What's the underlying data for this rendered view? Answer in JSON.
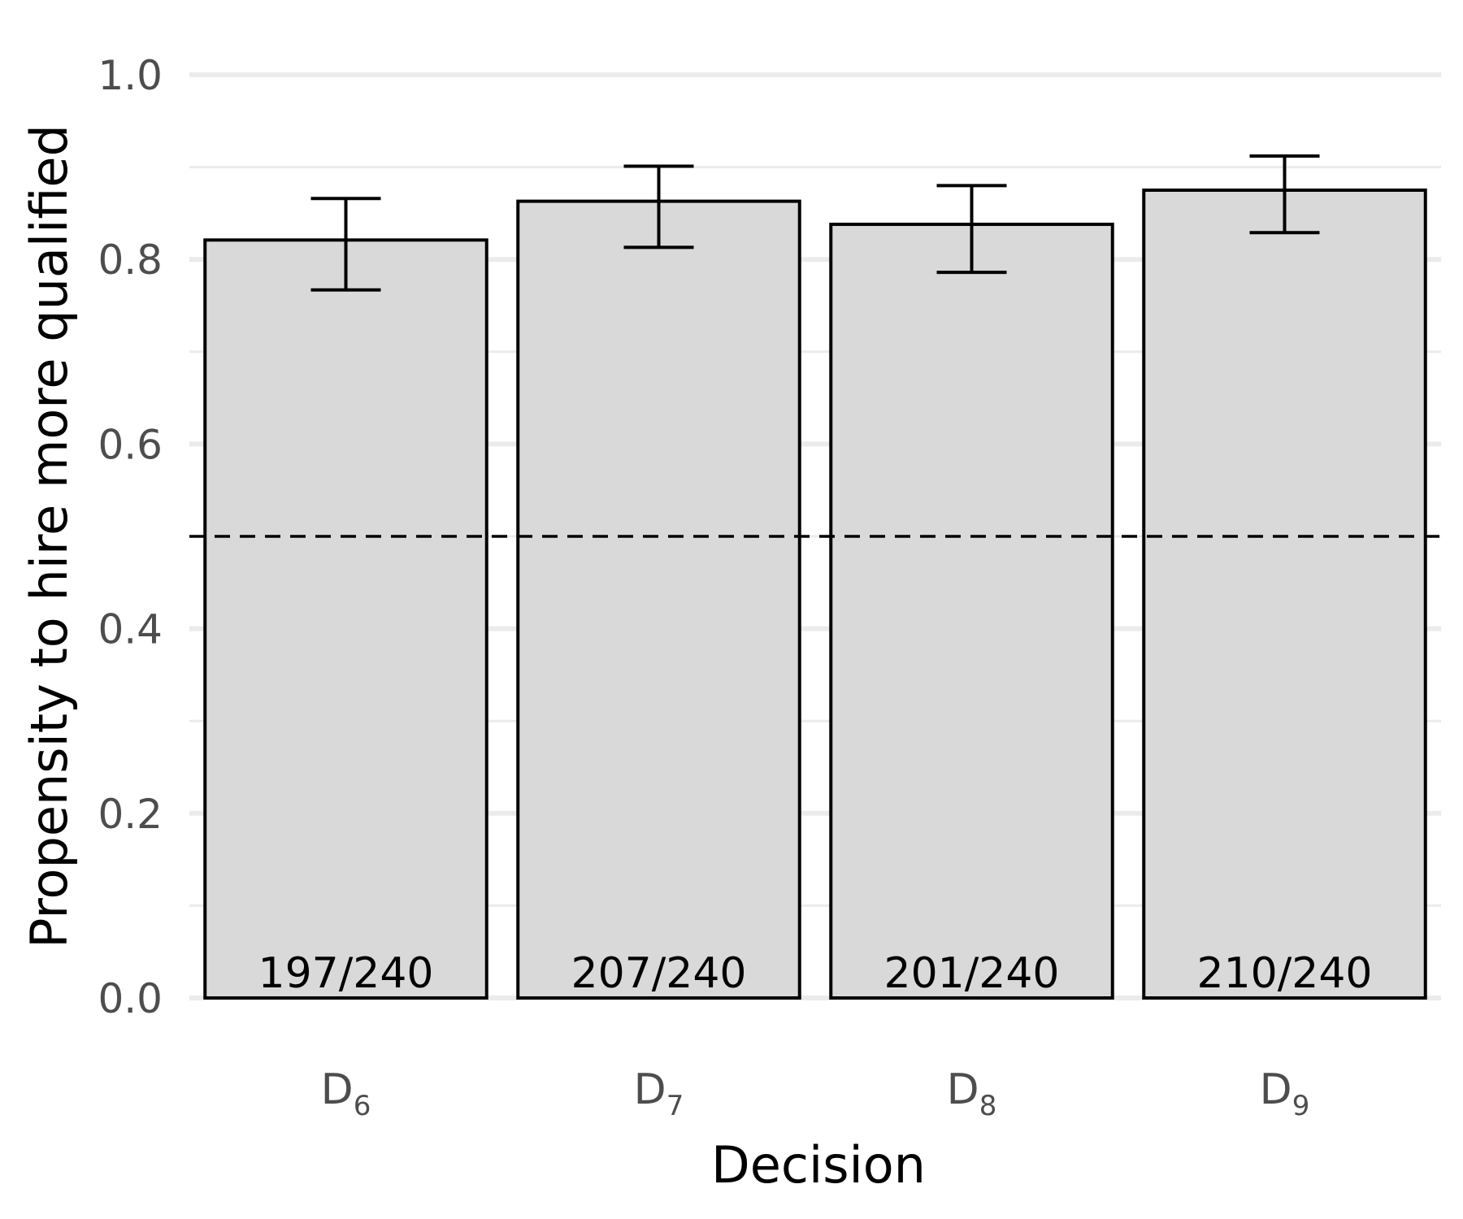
{
  "chart_data": {
    "type": "bar",
    "xlabel": "Decision",
    "ylabel": "Propensity to hire more qualified",
    "ylim": [
      0,
      1.0
    ],
    "yticks": [
      "0.0",
      "0.2",
      "0.4",
      "0.6",
      "0.8",
      "1.0"
    ],
    "grid": true,
    "reference_line": {
      "y": 0.5,
      "style": "dashed"
    },
    "categories": [
      {
        "base": "D",
        "sub": "6"
      },
      {
        "base": "D",
        "sub": "7"
      },
      {
        "base": "D",
        "sub": "8"
      },
      {
        "base": "D",
        "sub": "9"
      }
    ],
    "values": [
      0.821,
      0.863,
      0.838,
      0.875
    ],
    "error_low": [
      0.767,
      0.813,
      0.786,
      0.829
    ],
    "error_high": [
      0.866,
      0.901,
      0.88,
      0.912
    ],
    "bar_labels": [
      "197/240",
      "207/240",
      "201/240",
      "210/240"
    ],
    "colors": {
      "bar_fill": "#d9d9d9",
      "bar_stroke": "#000000",
      "grid": "#ebebeb",
      "text": "#4d4d4d"
    }
  }
}
